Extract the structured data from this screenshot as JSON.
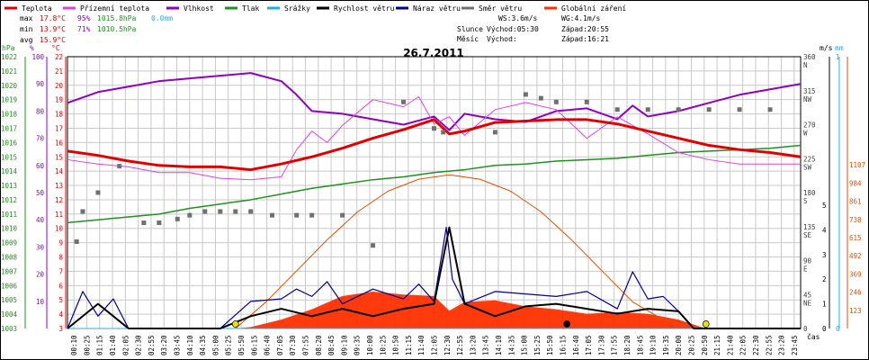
{
  "legend": [
    {
      "label": "Teplota",
      "color": "#e00000"
    },
    {
      "label": "Přízemní teplota",
      "color": "#e040e0"
    },
    {
      "label": "Vlhkost",
      "color": "#9000c0"
    },
    {
      "label": "Tlak",
      "color": "#209020"
    },
    {
      "label": "Srážky",
      "color": "#20b0e0"
    },
    {
      "label": "Rychlost větru",
      "color": "#000000"
    },
    {
      "label": "Náraz větru",
      "color": "#000090"
    },
    {
      "label": "Směr větru",
      "color": "#707070"
    },
    {
      "label": "Globální záření",
      "color": "#ff3000"
    }
  ],
  "stats": {
    "max_label": "max",
    "max_temp": "17.8°C",
    "max_hum": "95%",
    "max_press": "1015.8hPa",
    "max_rain": "0.0mm",
    "min_label": "min",
    "min_temp": "13.9°C",
    "min_hum": "71%",
    "min_press": "1010.5hPa",
    "avg_label": "avg",
    "avg_temp": "15.9°C"
  },
  "info": {
    "ws": "WS:3.6m/s",
    "wg": "WG:4.1m/s",
    "slunce": "Slunce",
    "slunce_vychod": "Východ:05:30",
    "slunce_zapad": "Západ:20:55",
    "mesic": "Měsíc",
    "mesic_vychod": "Východ:",
    "mesic_zapad": "Západ:16:21"
  },
  "chart_data": {
    "type": "line",
    "title": "26.7.2011",
    "xlabel": "čas",
    "x_ticks": [
      "00:10",
      "00:25",
      "01:15",
      "01:40",
      "02:05",
      "02:30",
      "02:55",
      "03:20",
      "03:45",
      "04:10",
      "04:35",
      "05:00",
      "05:25",
      "05:50",
      "06:15",
      "06:40",
      "07:05",
      "07:30",
      "07:55",
      "08:20",
      "08:45",
      "09:10",
      "09:35",
      "10:00",
      "10:25",
      "10:50",
      "11:15",
      "11:40",
      "12:05",
      "12:30",
      "12:55",
      "13:20",
      "13:45",
      "14:10",
      "14:35",
      "15:00",
      "15:25",
      "15:50",
      "16:15",
      "16:40",
      "17:05",
      "17:30",
      "17:55",
      "18:20",
      "18:45",
      "19:10",
      "19:35",
      "20:00",
      "20:25",
      "20:50",
      "21:15",
      "21:40",
      "22:05",
      "22:30",
      "22:55",
      "23:20",
      "23:45"
    ],
    "axes": {
      "hpa": {
        "label": "hPa",
        "color": "#209020",
        "range": [
          1003,
          1022
        ],
        "ticks": [
          1003,
          1004,
          1005,
          1006,
          1007,
          1008,
          1009,
          1010,
          1011,
          1012,
          1013,
          1014,
          1015,
          1016,
          1017,
          1018,
          1019,
          1020,
          1021,
          1022
        ]
      },
      "percent": {
        "label": "%",
        "color": "#9000c0",
        "range": [
          0,
          100
        ],
        "ticks": [
          10,
          20,
          30,
          40,
          50,
          60,
          70,
          80,
          90,
          100
        ]
      },
      "celsius": {
        "label": "°C",
        "color": "#e00000",
        "range": [
          3,
          22
        ],
        "ticks": [
          3,
          4,
          5,
          6,
          7,
          8,
          9,
          10,
          11,
          12,
          13,
          14,
          15,
          16,
          17,
          18,
          19,
          20,
          21,
          22
        ]
      },
      "direction": {
        "range": [
          0,
          360
        ],
        "ticks": [
          "0",
          "45 NE",
          "90 E",
          "135 SE",
          "180 S",
          "225 SW",
          "270 W",
          "315 NW",
          "360 N"
        ]
      },
      "ms": {
        "label": "m/s",
        "color": "#000000",
        "range": [
          0,
          5
        ],
        "ticks": [
          0,
          1,
          2,
          3,
          4,
          5
        ]
      },
      "mm": {
        "label": "mm",
        "color": "#20b0e0",
        "range": [
          0,
          1
        ],
        "ticks": [
          0,
          1
        ]
      },
      "wm2": {
        "color": "#e05000",
        "range": [
          0,
          1230
        ],
        "ticks": [
          123,
          246,
          369,
          492,
          615,
          738,
          861,
          984,
          1107
        ]
      }
    },
    "series": [
      {
        "name": "Teplota",
        "axis": "celsius",
        "x": [
          0,
          1,
          2,
          3,
          4,
          5,
          6,
          7,
          8,
          9,
          10,
          11,
          12,
          12.5,
          13,
          14,
          15,
          16,
          17,
          18,
          19,
          20,
          21,
          22,
          23,
          24
        ],
        "values": [
          15.4,
          15.1,
          14.7,
          14.4,
          14.3,
          14.3,
          14.1,
          14.5,
          15.0,
          15.6,
          16.3,
          16.9,
          17.6,
          16.6,
          16.8,
          17.4,
          17.5,
          17.6,
          17.6,
          17.3,
          16.8,
          16.3,
          15.8,
          15.5,
          15.3,
          15.0
        ]
      },
      {
        "name": "Přízemní teplota",
        "axis": "celsius",
        "x": [
          0,
          1,
          2,
          3,
          4,
          5,
          6,
          7,
          7.5,
          8,
          8.5,
          9,
          10,
          11,
          11.5,
          12,
          12.5,
          13,
          14,
          15,
          16,
          17,
          18,
          19,
          20,
          21,
          22,
          23,
          24
        ],
        "values": [
          14.8,
          14.5,
          14.3,
          13.9,
          13.9,
          13.5,
          13.4,
          13.6,
          15.5,
          16.8,
          16.0,
          17.2,
          19.0,
          18.5,
          19.2,
          17.3,
          17.8,
          16.5,
          18.3,
          18.8,
          18.3,
          16.3,
          17.8,
          16.6,
          15.3,
          14.8,
          14.5,
          14.5,
          14.5
        ]
      },
      {
        "name": "Vlhkost",
        "axis": "percent",
        "x": [
          0,
          1,
          2,
          3,
          4,
          5,
          6,
          7,
          7.5,
          8,
          9,
          10,
          11,
          12,
          12.5,
          13,
          14,
          15,
          16,
          17,
          18,
          18.5,
          19,
          20,
          21,
          22,
          23,
          24
        ],
        "values": [
          83,
          87,
          89,
          91,
          92,
          93,
          94,
          91,
          86,
          80,
          79,
          77,
          75,
          78,
          73,
          79,
          77,
          76,
          80,
          81,
          77,
          82,
          78,
          80,
          83,
          86,
          88,
          90
        ]
      },
      {
        "name": "Tlak",
        "axis": "hpa",
        "x": [
          0,
          1,
          2,
          3,
          4,
          5,
          6,
          7,
          8,
          9,
          10,
          11,
          12,
          13,
          14,
          15,
          16,
          17,
          18,
          19,
          20,
          21,
          22,
          23,
          24
        ],
        "values": [
          1010.4,
          1010.6,
          1010.8,
          1011.0,
          1011.4,
          1011.7,
          1012.0,
          1012.4,
          1012.8,
          1013.1,
          1013.4,
          1013.6,
          1013.9,
          1014.1,
          1014.4,
          1014.5,
          1014.7,
          1014.8,
          1014.9,
          1015.1,
          1015.3,
          1015.4,
          1015.5,
          1015.6,
          1015.8
        ]
      },
      {
        "name": "Srážky",
        "axis": "mm",
        "x": [
          0,
          24
        ],
        "values": [
          0,
          0
        ]
      },
      {
        "name": "Rychlost větru",
        "axis": "ms",
        "x": [
          0,
          1,
          2,
          3,
          4,
          5,
          6,
          7,
          8,
          9,
          10,
          11,
          12,
          12.5,
          13,
          14,
          15,
          16,
          17,
          18,
          19,
          20,
          20.5,
          21,
          22,
          23,
          24
        ],
        "values": [
          0,
          1,
          0,
          0,
          0,
          0,
          0.5,
          0.8,
          0.5,
          0.8,
          0.5,
          0.8,
          1,
          4.1,
          1,
          0.5,
          0.9,
          1,
          0.8,
          0.6,
          0.8,
          0.7,
          0,
          0,
          0,
          0,
          0
        ]
      },
      {
        "name": "Náraz větru",
        "axis": "ms",
        "x": [
          0,
          0.5,
          1,
          1.5,
          2,
          3,
          4,
          5,
          6,
          7,
          7.5,
          8,
          8.5,
          9,
          10,
          11,
          11.5,
          12,
          12.4,
          12.6,
          13,
          14,
          15,
          16,
          17,
          18,
          18.5,
          19,
          19.5,
          20,
          20.5,
          21,
          22,
          23,
          24
        ],
        "values": [
          0,
          1.5,
          0.5,
          1.2,
          0,
          0,
          0,
          0,
          1.1,
          1.2,
          1.6,
          1.3,
          1.9,
          1.0,
          1.6,
          1.2,
          1.8,
          1.1,
          4.1,
          2.0,
          1.0,
          1.5,
          1.4,
          1.3,
          1.5,
          0.8,
          2.3,
          1.2,
          1.3,
          0.7,
          0,
          0,
          0,
          0,
          0
        ]
      },
      {
        "name": "Směr větru",
        "axis": "direction",
        "x": [
          0.3,
          0.5,
          1.0,
          1.7,
          2.5,
          3.0,
          3.6,
          4.0,
          4.5,
          5.0,
          5.5,
          6.0,
          6.7,
          7.5,
          8.0,
          9.0,
          10.0,
          11.0,
          12.0,
          12.3,
          14.0,
          15.0,
          15.5,
          16.0,
          17.0,
          18.0,
          19.0,
          20.0,
          21.0,
          22.0,
          23.0
        ],
        "values": [
          115,
          155,
          180,
          215,
          140,
          140,
          145,
          150,
          155,
          155,
          155,
          155,
          150,
          150,
          150,
          150,
          110,
          300,
          265,
          260,
          260,
          310,
          305,
          300,
          300,
          290,
          290,
          290,
          290,
          290,
          290
        ]
      },
      {
        "name": "Globální záření",
        "axis": "wm2",
        "x": [
          5.5,
          6,
          7,
          8,
          9,
          10,
          11,
          12,
          12.5,
          13,
          14,
          15,
          16,
          17,
          18,
          19,
          20,
          20.9
        ],
        "values": [
          0,
          10,
          60,
          130,
          220,
          250,
          230,
          220,
          120,
          180,
          190,
          150,
          130,
          100,
          110,
          100,
          60,
          0
        ]
      },
      {
        "name": "Teoretické záření",
        "axis": "wm2",
        "x": [
          5.5,
          6.5,
          7.5,
          8.5,
          9.5,
          10.5,
          11.5,
          12.5,
          13.5,
          14.5,
          15.5,
          16.5,
          17.5,
          18.5,
          19.5,
          20.5,
          20.9
        ],
        "values": [
          0,
          180,
          390,
          600,
          790,
          930,
          1010,
          1040,
          1010,
          930,
          790,
          600,
          390,
          180,
          60,
          10,
          0
        ]
      }
    ],
    "markers": [
      {
        "name": "Východ slunce",
        "x": 5.5,
        "color": "#f0e000"
      },
      {
        "name": "Západ slunce",
        "x": 20.9,
        "color": "#f0e000"
      },
      {
        "name": "Západ měsíce",
        "x": 16.35,
        "color": "#000000"
      }
    ],
    "grid": true,
    "legend_placement": "top"
  }
}
